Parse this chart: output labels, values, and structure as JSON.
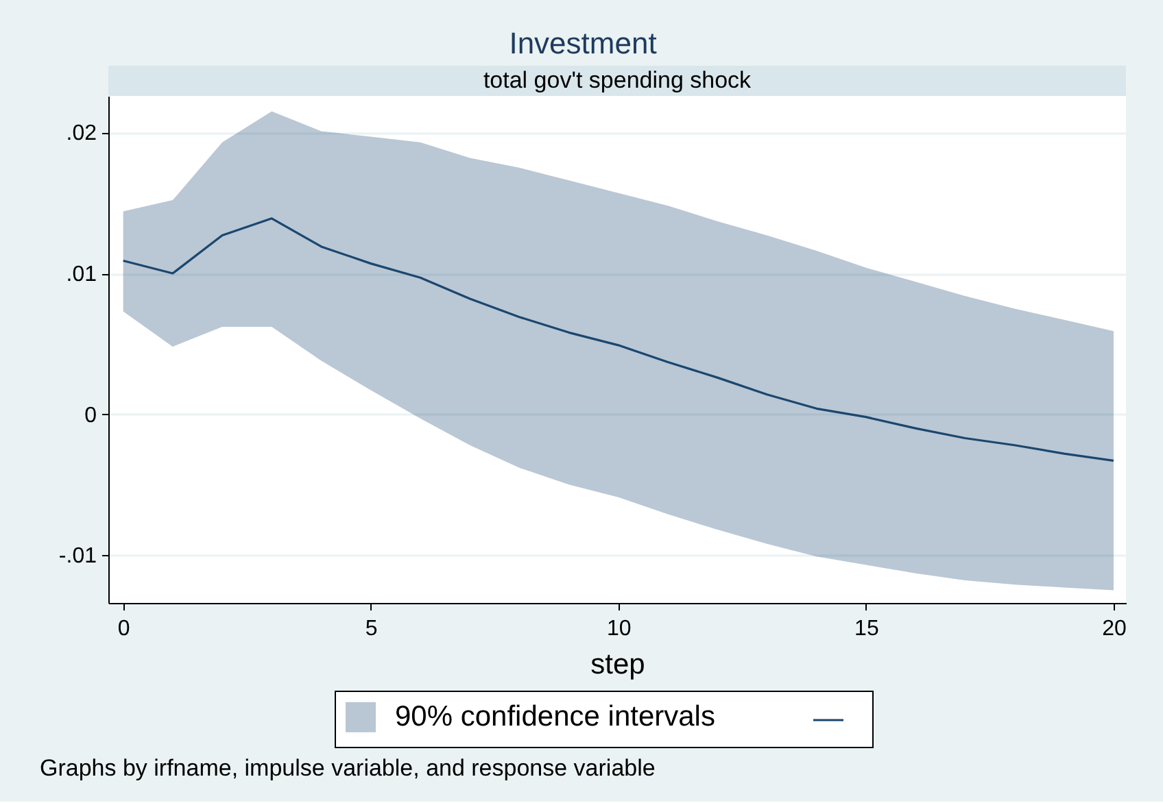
{
  "chart_data": {
    "type": "line",
    "title": "Investment",
    "subtitle": "total gov't spending shock",
    "xlabel": "step",
    "x": [
      0,
      1,
      2,
      3,
      4,
      5,
      6,
      7,
      8,
      9,
      10,
      11,
      12,
      13,
      14,
      15,
      16,
      17,
      18,
      19,
      20
    ],
    "series": [
      {
        "name": "90% confidence intervals",
        "color": "#1a476f",
        "values": [
          0.0109,
          0.01,
          0.0127,
          0.0139,
          0.0119,
          0.0107,
          0.0097,
          0.0082,
          0.0069,
          0.0058,
          0.0049,
          0.0037,
          0.0026,
          0.0014,
          0.0004,
          -0.0002,
          -0.001,
          -0.0017,
          -0.0022,
          -0.0028,
          -0.0033
        ],
        "lower": [
          0.0073,
          0.0048,
          0.0062,
          0.0062,
          0.0038,
          0.0017,
          -0.0003,
          -0.0022,
          -0.0038,
          -0.005,
          -0.0059,
          -0.0071,
          -0.0082,
          -0.0092,
          -0.0101,
          -0.0107,
          -0.0113,
          -0.0118,
          -0.0121,
          -0.0123,
          -0.0125
        ],
        "upper": [
          0.0144,
          0.0152,
          0.0193,
          0.0215,
          0.0201,
          0.0197,
          0.0193,
          0.0182,
          0.0175,
          0.0166,
          0.0157,
          0.0148,
          0.0137,
          0.0127,
          0.0116,
          0.0104,
          0.0094,
          0.0084,
          0.0075,
          0.0067,
          0.0059
        ]
      }
    ],
    "xlim": [
      -0.3,
      20.25
    ],
    "xticks": [
      0,
      5,
      10,
      15,
      20
    ],
    "ylim": [
      -0.0134,
      0.0226
    ],
    "yticks": [
      {
        "value": -0.01,
        "label": "-.01"
      },
      0,
      {
        "value": 0.01,
        "label": ".01"
      },
      {
        "value": 0.02,
        "label": ".02"
      }
    ],
    "grid": "y",
    "legend": "bottom",
    "annotations": [
      "Graphs by irfname, impulse variable, and response variable"
    ]
  }
}
